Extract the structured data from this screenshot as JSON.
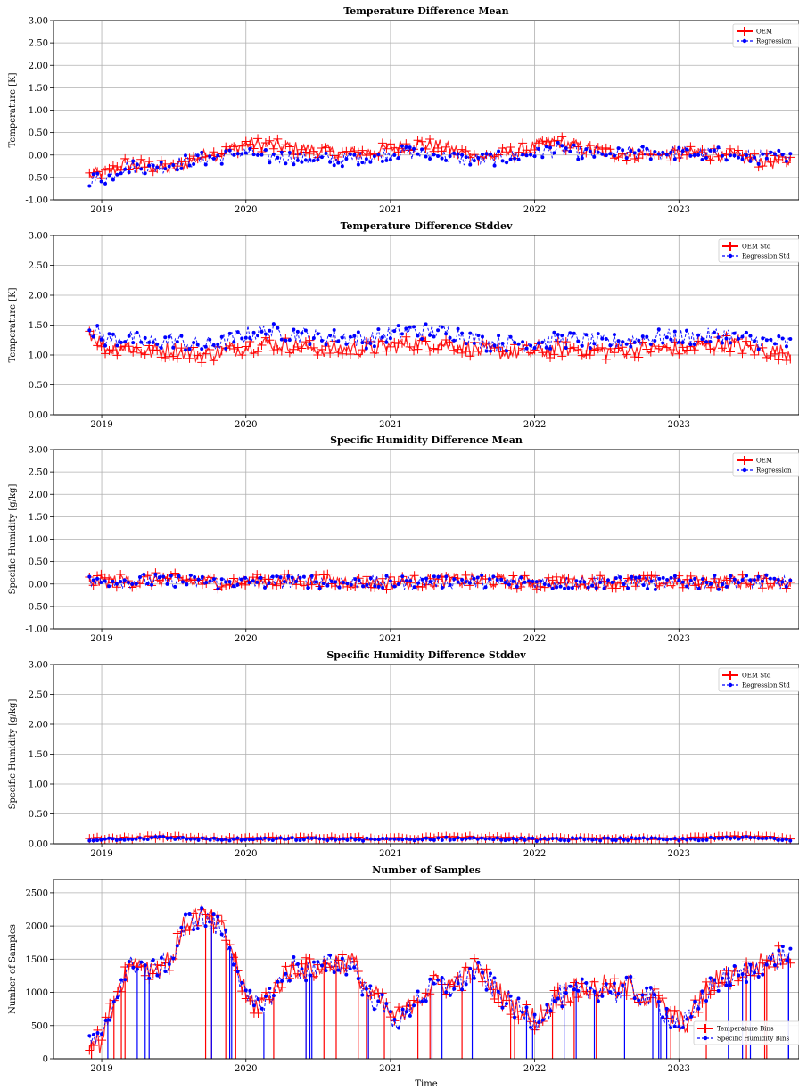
{
  "colors": {
    "primary": "#ff0000",
    "secondary": "#0000ff",
    "grid": "#b0b0b0",
    "axes": "#000000",
    "legend_border": "#cccccc"
  },
  "x_axis": {
    "ticks": [
      "2019",
      "2020",
      "2021",
      "2022",
      "2023"
    ],
    "label": "Time",
    "range": [
      "2018-09-01",
      "2023-11-01"
    ]
  },
  "chart_data": [
    {
      "type": "line",
      "title": "Temperature Difference Mean",
      "xlabel": "",
      "ylabel": "Temperature [K]",
      "ylim": [
        -1.0,
        3.0
      ],
      "yticks": [
        "-1.00",
        "-0.50",
        "0.00",
        "0.50",
        "1.00",
        "1.50",
        "2.00",
        "2.50",
        "3.00"
      ],
      "grid": true,
      "legend_position": "top-right",
      "legend_style": "error-bar",
      "series": [
        {
          "name": "OEM",
          "style": "errorbar",
          "x": [
            "2018-12-01",
            "2019-01-15",
            "2019-03-01",
            "2019-05-01",
            "2019-07-01",
            "2019-09-01",
            "2019-11-01",
            "2020-01-01",
            "2020-03-01",
            "2020-05-01",
            "2020-07-01",
            "2020-09-01",
            "2020-11-01",
            "2021-01-01",
            "2021-03-01",
            "2021-05-01",
            "2021-07-01",
            "2021-09-01",
            "2021-11-01",
            "2022-01-01",
            "2022-03-01",
            "2022-05-01",
            "2022-07-01",
            "2022-09-01",
            "2022-11-01",
            "2023-01-01",
            "2023-03-01",
            "2023-05-01",
            "2023-07-01",
            "2023-09-01",
            "2023-10-15"
          ],
          "values": [
            -0.45,
            -0.4,
            -0.2,
            -0.25,
            -0.3,
            -0.05,
            0.05,
            0.25,
            0.22,
            0.15,
            0.1,
            0.02,
            0.05,
            0.15,
            0.25,
            0.2,
            0.05,
            -0.05,
            0.05,
            0.18,
            0.3,
            0.15,
            0.05,
            0.02,
            0.0,
            0.02,
            0.05,
            0.0,
            -0.1,
            -0.15,
            -0.12
          ]
        },
        {
          "name": "Regression",
          "style": "dashed-dot",
          "x": [
            "2018-12-01",
            "2019-01-15",
            "2019-03-01",
            "2019-05-01",
            "2019-07-01",
            "2019-09-01",
            "2019-11-01",
            "2020-01-01",
            "2020-03-01",
            "2020-05-01",
            "2020-07-01",
            "2020-09-01",
            "2020-11-01",
            "2021-01-01",
            "2021-03-01",
            "2021-05-01",
            "2021-07-01",
            "2021-09-01",
            "2021-11-01",
            "2022-01-01",
            "2022-03-01",
            "2022-05-01",
            "2022-07-01",
            "2022-09-01",
            "2022-11-01",
            "2023-01-01",
            "2023-03-01",
            "2023-05-01",
            "2023-07-01",
            "2023-09-01",
            "2023-10-15"
          ],
          "values": [
            -0.55,
            -0.5,
            -0.25,
            -0.3,
            -0.2,
            -0.1,
            -0.05,
            0.05,
            -0.05,
            -0.05,
            -0.1,
            -0.1,
            -0.05,
            0.05,
            0.05,
            0.0,
            -0.1,
            -0.1,
            -0.05,
            0.05,
            0.12,
            0.05,
            0.0,
            0.05,
            0.05,
            0.05,
            0.02,
            0.02,
            -0.05,
            -0.05,
            0.05
          ]
        }
      ]
    },
    {
      "type": "line",
      "title": "Temperature Difference Stddev",
      "xlabel": "",
      "ylabel": "Temperature [K]",
      "ylim": [
        0.0,
        3.0
      ],
      "yticks": [
        "0.00",
        "0.50",
        "1.00",
        "1.50",
        "2.00",
        "2.50",
        "3.00"
      ],
      "grid": true,
      "legend_position": "top-right",
      "legend_style": "error-bar",
      "series": [
        {
          "name": "OEM Std",
          "style": "errorbar",
          "x": [
            "2018-12-01",
            "2019-01-15",
            "2019-03-01",
            "2019-05-01",
            "2019-07-01",
            "2019-09-01",
            "2019-11-01",
            "2020-01-01",
            "2020-03-01",
            "2020-05-01",
            "2020-07-01",
            "2020-09-01",
            "2020-11-01",
            "2021-01-01",
            "2021-03-01",
            "2021-05-01",
            "2021-07-01",
            "2021-09-01",
            "2021-11-01",
            "2022-01-01",
            "2022-03-01",
            "2022-05-01",
            "2022-07-01",
            "2022-09-01",
            "2022-11-01",
            "2023-01-01",
            "2023-03-01",
            "2023-05-01",
            "2023-07-01",
            "2023-09-01",
            "2023-10-15"
          ],
          "values": [
            1.4,
            1.1,
            1.15,
            1.05,
            1.1,
            1.0,
            1.05,
            1.15,
            1.2,
            1.15,
            1.1,
            1.1,
            1.1,
            1.15,
            1.2,
            1.2,
            1.15,
            1.05,
            1.05,
            1.05,
            1.1,
            1.1,
            1.05,
            1.1,
            1.1,
            1.1,
            1.15,
            1.2,
            1.1,
            1.05,
            1.05
          ]
        },
        {
          "name": "Regression Std",
          "style": "dashed-dot",
          "x": [
            "2018-12-01",
            "2019-01-15",
            "2019-03-01",
            "2019-05-01",
            "2019-07-01",
            "2019-09-01",
            "2019-11-01",
            "2020-01-01",
            "2020-03-01",
            "2020-05-01",
            "2020-07-01",
            "2020-09-01",
            "2020-11-01",
            "2021-01-01",
            "2021-03-01",
            "2021-05-01",
            "2021-07-01",
            "2021-09-01",
            "2021-11-01",
            "2022-01-01",
            "2022-03-01",
            "2022-05-01",
            "2022-07-01",
            "2022-09-01",
            "2022-11-01",
            "2023-01-01",
            "2023-03-01",
            "2023-05-01",
            "2023-07-01",
            "2023-09-01",
            "2023-10-15"
          ],
          "values": [
            1.45,
            1.25,
            1.3,
            1.2,
            1.25,
            1.15,
            1.2,
            1.35,
            1.4,
            1.35,
            1.3,
            1.3,
            1.25,
            1.35,
            1.4,
            1.4,
            1.35,
            1.2,
            1.2,
            1.2,
            1.25,
            1.25,
            1.2,
            1.25,
            1.3,
            1.3,
            1.3,
            1.35,
            1.25,
            1.2,
            1.2
          ]
        }
      ]
    },
    {
      "type": "line",
      "title": "Specific Humidity Difference Mean",
      "xlabel": "",
      "ylabel": "Specific Humidity [g/kg]",
      "ylim": [
        -1.0,
        3.0
      ],
      "yticks": [
        "-1.00",
        "-0.50",
        "0.00",
        "0.50",
        "1.00",
        "1.50",
        "2.00",
        "2.50",
        "3.00"
      ],
      "grid": true,
      "legend_position": "top-right",
      "legend_style": "error-bar",
      "series": [
        {
          "name": "OEM",
          "style": "errorbar",
          "x": [
            "2018-12-01",
            "2019-06-01",
            "2019-11-01",
            "2020-06-01",
            "2021-01-01",
            "2021-07-01",
            "2022-01-01",
            "2022-07-01",
            "2023-01-01",
            "2023-07-01",
            "2023-10-15"
          ],
          "values": [
            0.05,
            0.1,
            0.04,
            0.08,
            0.03,
            0.08,
            0.03,
            0.06,
            0.03,
            0.06,
            0.04
          ]
        },
        {
          "name": "Regression",
          "style": "dashed-dot",
          "x": [
            "2018-12-01",
            "2019-06-01",
            "2019-11-01",
            "2020-06-01",
            "2021-01-01",
            "2021-07-01",
            "2022-01-01",
            "2022-07-01",
            "2023-01-01",
            "2023-07-01",
            "2023-10-15"
          ],
          "values": [
            0.04,
            0.08,
            0.03,
            0.06,
            0.02,
            0.06,
            0.02,
            0.05,
            0.02,
            0.05,
            0.03
          ]
        }
      ]
    },
    {
      "type": "line",
      "title": "Specific Humidity Difference Stddev",
      "xlabel": "",
      "ylabel": "Specific Humidity [g/kg]",
      "ylim": [
        0.0,
        3.0
      ],
      "yticks": [
        "0.00",
        "0.50",
        "1.00",
        "1.50",
        "2.00",
        "2.50",
        "3.00"
      ],
      "grid": true,
      "legend_position": "top-right",
      "legend_style": "error-bar",
      "series": [
        {
          "name": "OEM Std",
          "style": "errorbar",
          "x": [
            "2018-12-01",
            "2019-06-01",
            "2019-11-01",
            "2020-06-01",
            "2021-01-01",
            "2021-07-01",
            "2022-01-01",
            "2022-07-01",
            "2023-01-01",
            "2023-07-01",
            "2023-10-15"
          ],
          "values": [
            0.08,
            0.12,
            0.08,
            0.1,
            0.08,
            0.11,
            0.08,
            0.09,
            0.08,
            0.12,
            0.08
          ]
        },
        {
          "name": "Regression Std",
          "style": "dashed-dot",
          "x": [
            "2018-12-01",
            "2019-06-01",
            "2019-11-01",
            "2020-06-01",
            "2021-01-01",
            "2021-07-01",
            "2022-01-01",
            "2022-07-01",
            "2023-01-01",
            "2023-07-01",
            "2023-10-15"
          ],
          "values": [
            0.07,
            0.1,
            0.07,
            0.08,
            0.07,
            0.09,
            0.07,
            0.08,
            0.07,
            0.1,
            0.07
          ]
        }
      ]
    },
    {
      "type": "line",
      "title": "Number of Samples",
      "xlabel": "Time",
      "ylabel": "Number of Samples",
      "ylim": [
        0,
        2700
      ],
      "yticks": [
        "0",
        "500",
        "1000",
        "1500",
        "2000",
        "2500"
      ],
      "grid": true,
      "legend_position": "bottom-right",
      "legend_style": "error-bar",
      "series": [
        {
          "name": "Temperature Bins",
          "style": "errorbar",
          "x": [
            "2018-12-01",
            "2019-01-01",
            "2019-02-01",
            "2019-03-01",
            "2019-04-01",
            "2019-05-01",
            "2019-06-01",
            "2019-07-01",
            "2019-08-01",
            "2019-09-01",
            "2019-10-01",
            "2019-11-01",
            "2019-12-01",
            "2020-01-01",
            "2020-02-01",
            "2020-03-01",
            "2020-04-01",
            "2020-05-01",
            "2020-06-01",
            "2020-07-01",
            "2020-08-01",
            "2020-09-01",
            "2020-10-01",
            "2020-11-01",
            "2020-12-01",
            "2021-01-01",
            "2021-02-01",
            "2021-03-01",
            "2021-04-01",
            "2021-05-01",
            "2021-06-01",
            "2021-07-01",
            "2021-08-01",
            "2021-09-01",
            "2021-10-01",
            "2021-11-01",
            "2021-12-01",
            "2022-01-01",
            "2022-02-01",
            "2022-03-01",
            "2022-04-01",
            "2022-05-01",
            "2022-06-01",
            "2022-07-01",
            "2022-08-01",
            "2022-09-01",
            "2022-10-01",
            "2022-11-01",
            "2022-12-01",
            "2023-01-01",
            "2023-02-01",
            "2023-03-01",
            "2023-04-01",
            "2023-05-01",
            "2023-06-01",
            "2023-07-01",
            "2023-08-01",
            "2023-09-01",
            "2023-10-01",
            "2023-10-15"
          ],
          "values": [
            300,
            250,
            900,
            1300,
            1500,
            1350,
            1400,
            1550,
            2050,
            2150,
            2100,
            1950,
            1600,
            900,
            800,
            950,
            1200,
            1400,
            1350,
            1350,
            1450,
            1450,
            1450,
            1000,
            900,
            650,
            600,
            900,
            1000,
            1150,
            1100,
            1200,
            1350,
            1200,
            1000,
            850,
            700,
            600,
            750,
            950,
            1000,
            1050,
            1050,
            1100,
            1000,
            1100,
            950,
            900,
            700,
            550,
            600,
            950,
            1150,
            1250,
            1300,
            1350,
            1450,
            1500,
            1600,
            1550
          ]
        },
        {
          "name": "Specific Humidity Bins",
          "style": "dashed-dot",
          "x": [
            "2018-12-01",
            "2019-01-01",
            "2019-02-01",
            "2019-03-01",
            "2019-04-01",
            "2019-05-01",
            "2019-06-01",
            "2019-07-01",
            "2019-08-01",
            "2019-09-01",
            "2019-10-01",
            "2019-11-01",
            "2019-12-01",
            "2020-01-01",
            "2020-02-01",
            "2020-03-01",
            "2020-04-01",
            "2020-05-01",
            "2020-06-01",
            "2020-07-01",
            "2020-08-01",
            "2020-09-01",
            "2020-10-01",
            "2020-11-01",
            "2020-12-01",
            "2021-01-01",
            "2021-02-01",
            "2021-03-01",
            "2021-04-01",
            "2021-05-01",
            "2021-06-01",
            "2021-07-01",
            "2021-08-01",
            "2021-09-01",
            "2021-10-01",
            "2021-11-01",
            "2021-12-01",
            "2022-01-01",
            "2022-02-01",
            "2022-03-01",
            "2022-04-01",
            "2022-05-01",
            "2022-06-01",
            "2022-07-01",
            "2022-08-01",
            "2022-09-01",
            "2022-10-01",
            "2022-11-01",
            "2022-12-01",
            "2023-01-01",
            "2023-02-01",
            "2023-03-01",
            "2023-04-01",
            "2023-05-01",
            "2023-06-01",
            "2023-07-01",
            "2023-08-01",
            "2023-09-01",
            "2023-10-01",
            "2023-10-15"
          ],
          "values": [
            290,
            240,
            880,
            1280,
            1480,
            1330,
            1380,
            1530,
            2030,
            2130,
            2080,
            1930,
            1580,
            880,
            780,
            930,
            1180,
            1380,
            1330,
            1330,
            1430,
            1430,
            1430,
            980,
            880,
            630,
            580,
            880,
            980,
            1130,
            1080,
            1180,
            1330,
            1180,
            980,
            830,
            680,
            580,
            730,
            930,
            980,
            1030,
            1030,
            1080,
            980,
            1080,
            930,
            880,
            680,
            530,
            580,
            930,
            1130,
            1230,
            1280,
            1330,
            1430,
            1480,
            1580,
            1530
          ]
        }
      ]
    }
  ]
}
